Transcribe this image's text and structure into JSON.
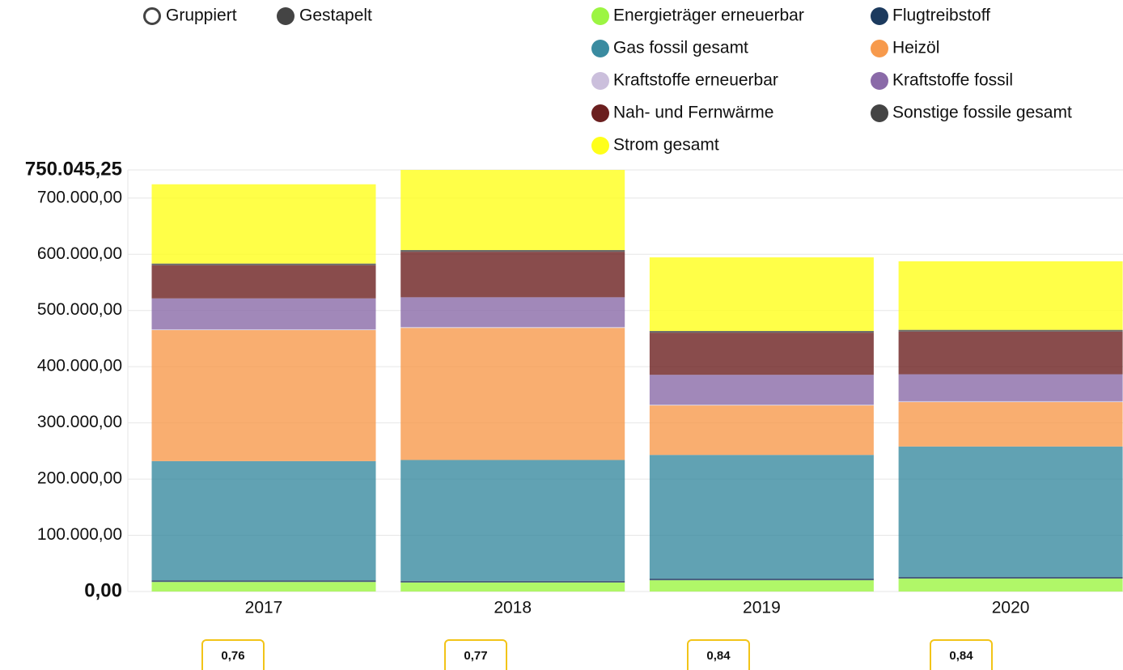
{
  "chart_data": {
    "type": "stacked_bar",
    "mode_options": [
      "Gruppiert",
      "Gestapelt"
    ],
    "selected_mode": 1,
    "categories": [
      "2017",
      "2018",
      "2019",
      "2020"
    ],
    "series": [
      {
        "name": "Energieträger erneuerbar",
        "color": "#9cf542",
        "values": [
          17000,
          16000,
          20000,
          23000
        ]
      },
      {
        "name": "Flugtreibstoff",
        "color": "#1c3a5e",
        "values": [
          3000,
          3000,
          3000,
          3000
        ]
      },
      {
        "name": "Gas fossil gesamt",
        "color": "#3a8ba0",
        "values": [
          212000,
          215000,
          220000,
          232000
        ]
      },
      {
        "name": "Heizöl",
        "color": "#f79a4c",
        "values": [
          233000,
          235000,
          88000,
          79000
        ]
      },
      {
        "name": "Kraftstoffe erneuerbar",
        "color": "#cbbfdc",
        "values": [
          1500,
          1500,
          1500,
          1500
        ]
      },
      {
        "name": "Kraftstoffe fossil",
        "color": "#8a6aa8",
        "values": [
          55000,
          53000,
          53000,
          48000
        ]
      },
      {
        "name": "Nah- und Fernwärme",
        "color": "#6b1f1f",
        "values": [
          59000,
          81000,
          75000,
          76000
        ]
      },
      {
        "name": "Sonstige fossile gesamt",
        "color": "#444444",
        "values": [
          3000,
          3000,
          3000,
          3000
        ]
      },
      {
        "name": "Strom gesamt",
        "color": "#ffff1a",
        "values": [
          141000,
          142500,
          131000,
          122000
        ]
      }
    ],
    "ylim": [
      0,
      750045.25
    ],
    "yticks": [
      {
        "value": 0,
        "label": "0,00"
      },
      {
        "value": 100000,
        "label": "100.000,00"
      },
      {
        "value": 200000,
        "label": "200.000,00"
      },
      {
        "value": 300000,
        "label": "300.000,00"
      },
      {
        "value": 400000,
        "label": "400.000,00"
      },
      {
        "value": 500000,
        "label": "500.000,00"
      },
      {
        "value": 600000,
        "label": "600.000,00"
      },
      {
        "value": 700000,
        "label": "700.000,00"
      },
      {
        "value": 750045.25,
        "label": "750.045,25"
      }
    ],
    "grid": true,
    "annotations": [
      "0,76",
      "0,77",
      "0,84",
      "0,84"
    ]
  }
}
